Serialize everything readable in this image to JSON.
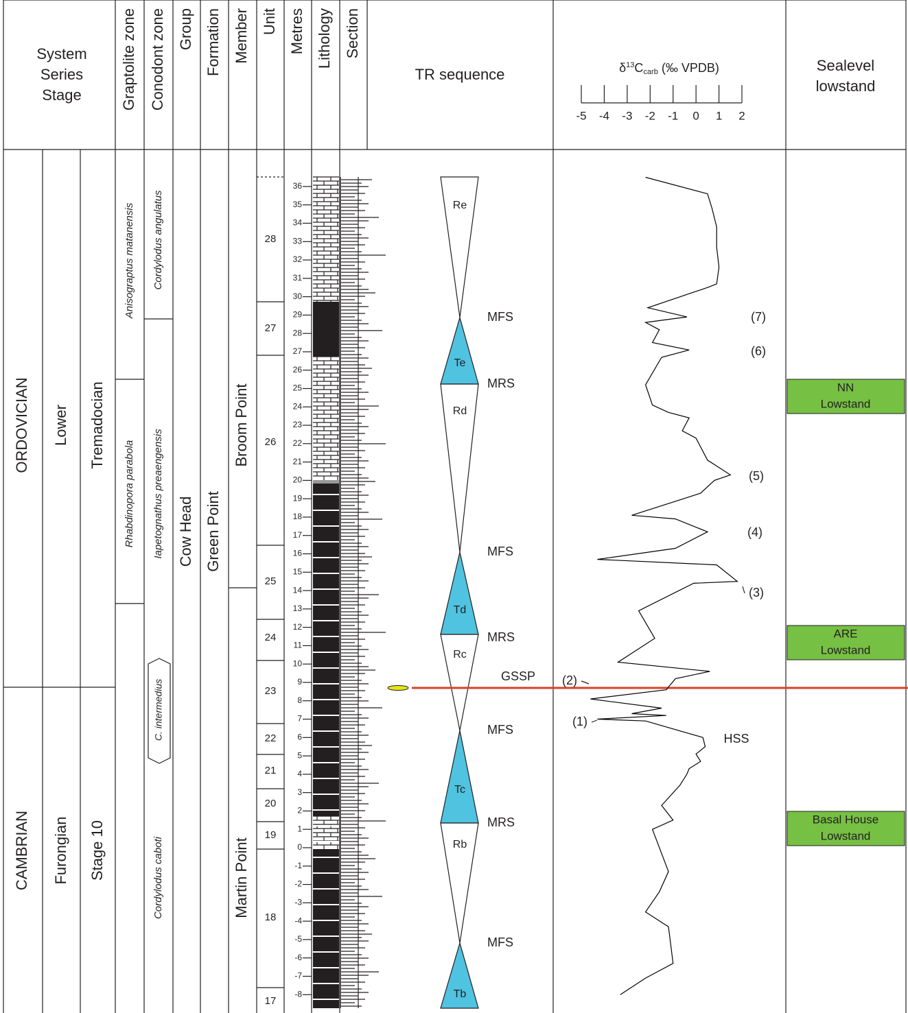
{
  "header": {
    "system_series_stage": [
      "System",
      "Series",
      "Stage"
    ],
    "graptolite_zone": "Graptolite zone",
    "conodont_zone": "Conodont zone",
    "group": "Group",
    "formation": "Formation",
    "member": "Member",
    "unit": "Unit",
    "metres": "Metres",
    "lithology": "Lithology",
    "section": "Section",
    "tr_sequence": "TR sequence",
    "sealevel": [
      "Sealevel",
      "lowstand"
    ]
  },
  "systems": [
    "ORDOVICIAN",
    "CAMBRIAN"
  ],
  "series": [
    "Lower",
    "Furongian"
  ],
  "stages": [
    "Tremadocian",
    "Stage 10"
  ],
  "graptolite_zones": [
    "Anisograptus matanensis",
    "Rhabdinopora parabola"
  ],
  "conodont_zones": [
    "Cordylodus angulatus",
    "Iapetognathus preaengensis",
    "C. intermedius",
    "Cordylodus caboti"
  ],
  "group": "Cow Head",
  "formation": "Green Point",
  "members": [
    "Broom Point",
    "Martin Point"
  ],
  "units": [
    28,
    27,
    26,
    25,
    24,
    23,
    22,
    21,
    20,
    19,
    18,
    17
  ],
  "metres_ticks": [
    36,
    35,
    34,
    33,
    32,
    31,
    30,
    29,
    28,
    27,
    26,
    25,
    24,
    23,
    22,
    21,
    20,
    19,
    18,
    17,
    16,
    15,
    14,
    13,
    12,
    11,
    10,
    9,
    8,
    7,
    6,
    5,
    4,
    3,
    2,
    1,
    0,
    -1,
    -2,
    -3,
    -4,
    -5,
    -6,
    -7,
    -8
  ],
  "tr_sequence": {
    "labels": [
      "Re",
      "Te",
      "Rd",
      "Td",
      "Rc",
      "Tc",
      "Rb",
      "Tb"
    ],
    "surfaces": [
      "MFS",
      "MRS",
      "MFS",
      "MRS",
      "GSSP",
      "MFS",
      "MRS",
      "MFS"
    ]
  },
  "carbon_isotope": {
    "title": {
      "delta": "δ",
      "mass": "13",
      "element": "C",
      "subscript": "carb",
      "unit": "(‰ VPDB)"
    },
    "xlim": [
      -5,
      2
    ],
    "xticks": [
      -5,
      -4,
      -3,
      -2,
      -1,
      0,
      1,
      2
    ],
    "color": "#000000",
    "metres": [
      36.5,
      35.6,
      34.8,
      33.8,
      32.7,
      31.6,
      30.7,
      30.5,
      29.4,
      28.9,
      28.6,
      28.2,
      27.5,
      27.1,
      26.7,
      25.2,
      24.1,
      23.7,
      23.4,
      22.7,
      22.3,
      21.1,
      20.3,
      20.0,
      19.3,
      18.1,
      17.9,
      17.6,
      17.2,
      16.3,
      15.7,
      15.4,
      14.5,
      14.4,
      12.9,
      11.4,
      10.1,
      9.6,
      9.2,
      8.6,
      8.1,
      7.6,
      7.3,
      7.2,
      7.0,
      6.9,
      6.0,
      5.5,
      5.1,
      4.7,
      4.3,
      4.0,
      3.4,
      2.3,
      1.5,
      1.0,
      -1.3,
      -2.4,
      -3.5,
      -4.3,
      -6.3,
      -7.1,
      -8.0
    ],
    "values": [
      -2.2,
      0.5,
      0.7,
      0.9,
      0.9,
      1.0,
      0.9,
      0.5,
      -2.1,
      -0.4,
      -2.2,
      -1.6,
      -1.9,
      -0.3,
      -1.5,
      -2.2,
      -1.9,
      -1.2,
      -0.3,
      -0.6,
      0.0,
      0.5,
      1.5,
      0.8,
      0.2,
      -2.8,
      -0.9,
      -0.3,
      0.5,
      -0.9,
      -4.3,
      0.9,
      1.8,
      -0.1,
      -2.5,
      -1.8,
      -3.4,
      0.6,
      -0.9,
      -1.3,
      -4.6,
      -1.5,
      -2.8,
      -1.3,
      -4.3,
      -2.2,
      0.3,
      0.4,
      0.0,
      0.2,
      -0.3,
      -0.4,
      -0.7,
      -1.5,
      -1.0,
      -1.9,
      -1.2,
      -1.6,
      -2.2,
      -1.2,
      -1.0,
      -2.2,
      -3.3
    ],
    "events": [
      "(1)",
      "(2)",
      "(3)",
      "(4)",
      "(5)",
      "(6)",
      "(7)"
    ],
    "hss": "HSS"
  },
  "lowstands": [
    [
      "NN",
      "Lowstand"
    ],
    [
      "ARE",
      "Lowstand"
    ],
    [
      "Basal House",
      "Lowstand"
    ]
  ]
}
